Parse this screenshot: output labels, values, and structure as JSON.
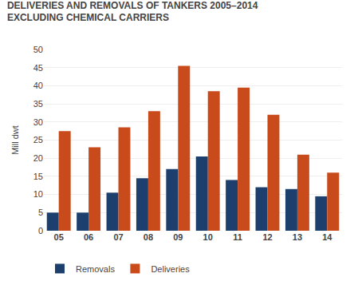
{
  "chart_data": {
    "type": "bar",
    "title": "DELIVERIES AND REMOVALS OF TANKERS 2005–2014",
    "subtitle": "EXCLUDING CHEMICAL CARRIERS",
    "ylabel": "Mill dwt",
    "categories": [
      "05",
      "06",
      "07",
      "08",
      "09",
      "10",
      "11",
      "12",
      "13",
      "14"
    ],
    "series": [
      {
        "name": "Removals",
        "color": "#1c3f6e",
        "values": [
          5,
          5,
          10.5,
          14.5,
          17,
          20.5,
          14,
          12,
          11.5,
          9.5
        ]
      },
      {
        "name": "Deliveries",
        "color": "#c94a1b",
        "values": [
          27.5,
          23,
          28.5,
          33,
          45.5,
          38.5,
          39.5,
          32,
          21,
          16
        ]
      }
    ],
    "ylim": [
      0,
      50
    ],
    "yticks": [
      0,
      5,
      10,
      15,
      20,
      25,
      30,
      35,
      40,
      45,
      50
    ],
    "grid": true,
    "legend": "bottom"
  }
}
